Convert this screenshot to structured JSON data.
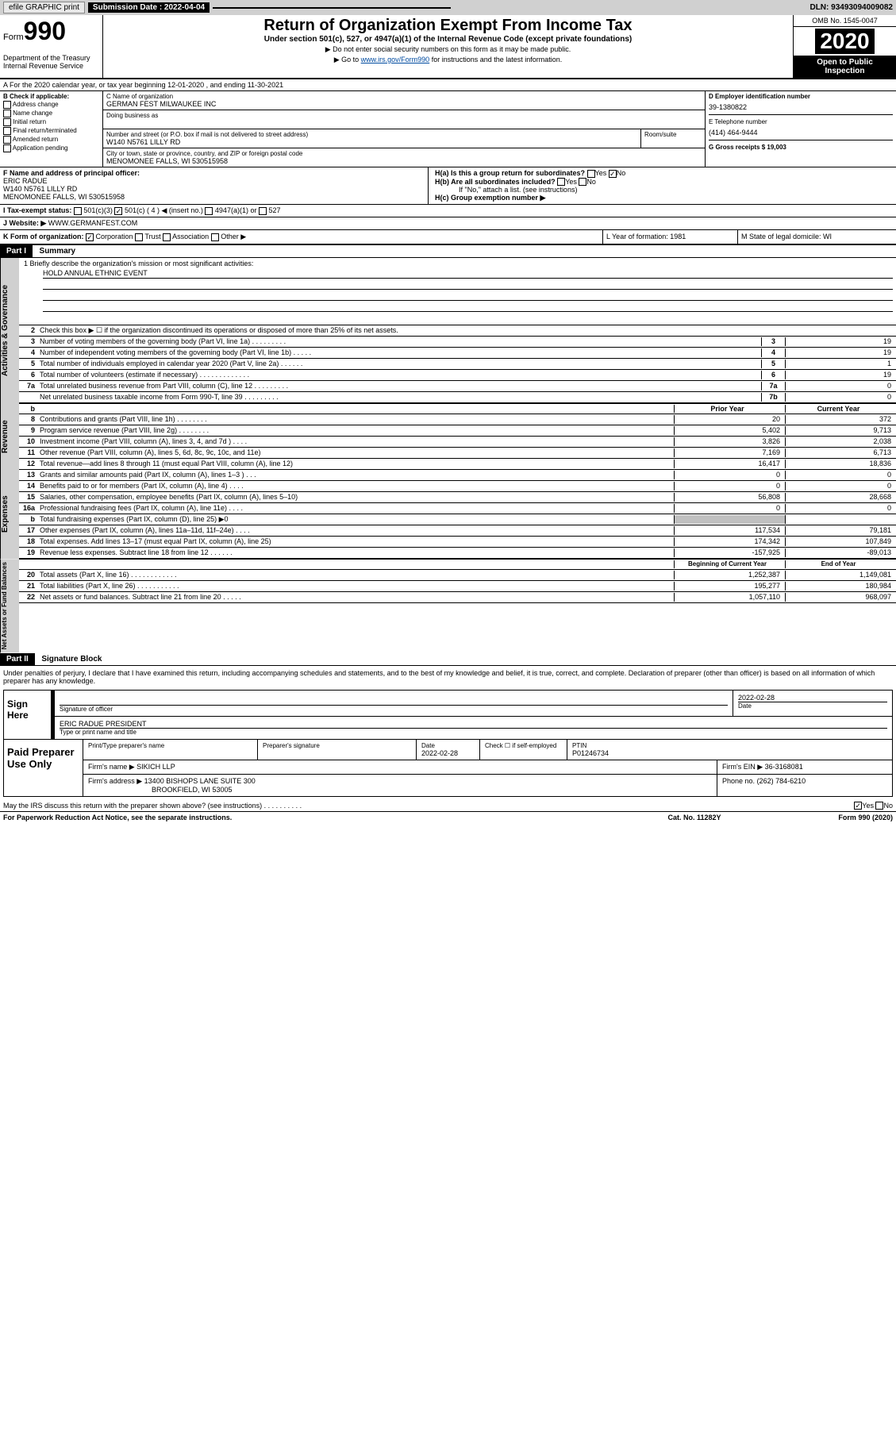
{
  "topbar": {
    "efile": "efile GRAPHIC print",
    "submission_label": "Submission Date : 2022-04-04",
    "dln": "DLN: 93493094009082"
  },
  "header": {
    "form_prefix": "Form",
    "form_num": "990",
    "dept": "Department of the Treasury\nInternal Revenue Service",
    "title": "Return of Organization Exempt From Income Tax",
    "subtitle": "Under section 501(c), 527, or 4947(a)(1) of the Internal Revenue Code (except private foundations)",
    "note1": "▶ Do not enter social security numbers on this form as it may be made public.",
    "note2_pre": "▶ Go to ",
    "note2_link": "www.irs.gov/Form990",
    "note2_post": " for instructions and the latest information.",
    "omb": "OMB No. 1545-0047",
    "year": "2020",
    "inspection": "Open to Public Inspection"
  },
  "line_a": "A For the 2020 calendar year, or tax year beginning 12-01-2020    , and ending 11-30-2021",
  "col_b": {
    "hdr": "B Check if applicable:",
    "items": [
      "Address change",
      "Name change",
      "Initial return",
      "Final return/terminated",
      "Amended return",
      "Application pending"
    ]
  },
  "col_c": {
    "name_lbl": "C Name of organization",
    "name": "GERMAN FEST MILWAUKEE INC",
    "dba_lbl": "Doing business as",
    "dba": "",
    "street_lbl": "Number and street (or P.O. box if mail is not delivered to street address)",
    "street": "W140 N5761 LILLY RD",
    "room_lbl": "Room/suite",
    "room": "",
    "city_lbl": "City or town, state or province, country, and ZIP or foreign postal code",
    "city": "MENOMONEE FALLS, WI  530515958"
  },
  "col_d": {
    "ein_lbl": "D Employer identification number",
    "ein": "39-1380822",
    "phone_lbl": "E Telephone number",
    "phone": "(414) 464-9444",
    "gross_lbl": "G Gross receipts $ 19,003"
  },
  "section_f": {
    "lbl": "F Name and address of principal officer:",
    "name": "ERIC RADUE",
    "addr1": "W140 N5761 LILLY RD",
    "addr2": "MENOMONEE FALLS, WI  530515958"
  },
  "section_h": {
    "ha": "H(a)  Is this a group return for subordinates?",
    "ha_yes": "Yes",
    "ha_no": "No",
    "hb": "H(b)  Are all subordinates included?",
    "hb_yes": "Yes",
    "hb_no": "No",
    "hb_note": "If \"No,\" attach a list. (see instructions)",
    "hc": "H(c)  Group exemption number ▶"
  },
  "tax_status": {
    "lbl": "I   Tax-exempt status:",
    "c3": "501(c)(3)",
    "c": "501(c) ( 4 ) ◀ (insert no.)",
    "a1": "4947(a)(1) or",
    "s527": "527"
  },
  "website": {
    "lbl": "J   Website: ▶",
    "val": "WWW.GERMANFEST.COM"
  },
  "k_row": {
    "k": "K Form of organization:",
    "corp": "Corporation",
    "trust": "Trust",
    "assoc": "Association",
    "other": "Other ▶",
    "l": "L Year of formation: 1981",
    "m": "M State of legal domicile: WI"
  },
  "part1": {
    "hdr": "Part I",
    "title": "Summary"
  },
  "mission": {
    "lbl": "1  Briefly describe the organization's mission or most significant activities:",
    "txt": "HOLD ANNUAL ETHNIC EVENT"
  },
  "governance": {
    "label": "Activities & Governance",
    "l2": "Check this box ▶ ☐  if the organization discontinued its operations or disposed of more than 25% of its net assets.",
    "lines": [
      {
        "n": "3",
        "t": "Number of voting members of the governing body (Part VI, line 1a)   .    .    .    .    .    .    .    .    .",
        "b": "3",
        "v": "19"
      },
      {
        "n": "4",
        "t": "Number of independent voting members of the governing body (Part VI, line 1b)  .    .    .    .    .",
        "b": "4",
        "v": "19"
      },
      {
        "n": "5",
        "t": "Total number of individuals employed in calendar year 2020 (Part V, line 2a)   .    .    .    .    .    .",
        "b": "5",
        "v": "1"
      },
      {
        "n": "6",
        "t": "Total number of volunteers (estimate if necessary)   .    .    .    .    .    .    .    .    .    .    .    .    .",
        "b": "6",
        "v": "19"
      },
      {
        "n": "7a",
        "t": "Total unrelated business revenue from Part VIII, column (C), line 12  .    .    .    .    .    .    .    .    .",
        "b": "7a",
        "v": "0"
      },
      {
        "n": "",
        "t": "Net unrelated business taxable income from Form 990-T, line 39   .    .    .    .    .    .    .    .    .",
        "b": "7b",
        "v": "0"
      }
    ]
  },
  "two_col_hdr": {
    "prior": "Prior Year",
    "curr": "Current Year"
  },
  "revenue": {
    "label": "Revenue",
    "lines": [
      {
        "n": "8",
        "t": "Contributions and grants (Part VIII, line 1h)   .    .    .    .    .    .    .    .",
        "p": "20",
        "c": "372"
      },
      {
        "n": "9",
        "t": "Program service revenue (Part VIII, line 2g)   .    .    .    .    .    .    .    .",
        "p": "5,402",
        "c": "9,713"
      },
      {
        "n": "10",
        "t": "Investment income (Part VIII, column (A), lines 3, 4, and 7d )  .    .    .    .",
        "p": "3,826",
        "c": "2,038"
      },
      {
        "n": "11",
        "t": "Other revenue (Part VIII, column (A), lines 5, 6d, 8c, 9c, 10c, and 11e)",
        "p": "7,169",
        "c": "6,713"
      },
      {
        "n": "12",
        "t": "Total revenue—add lines 8 through 11 (must equal Part VIII, column (A), line 12)",
        "p": "16,417",
        "c": "18,836"
      }
    ]
  },
  "expenses": {
    "label": "Expenses",
    "lines": [
      {
        "n": "13",
        "t": "Grants and similar amounts paid (Part IX, column (A), lines 1–3 )  .    .    .",
        "p": "0",
        "c": "0"
      },
      {
        "n": "14",
        "t": "Benefits paid to or for members (Part IX, column (A), line 4)   .    .    .    .",
        "p": "0",
        "c": "0"
      },
      {
        "n": "15",
        "t": "Salaries, other compensation, employee benefits (Part IX, column (A), lines 5–10)",
        "p": "56,808",
        "c": "28,668"
      },
      {
        "n": "16a",
        "t": "Professional fundraising fees (Part IX, column (A), line 11e)   .    .    .    .",
        "p": "0",
        "c": "0"
      },
      {
        "n": "b",
        "t": "Total fundraising expenses (Part IX, column (D), line 25) ▶0",
        "p": "",
        "c": "",
        "shade": true
      },
      {
        "n": "17",
        "t": "Other expenses (Part IX, column (A), lines 11a–11d, 11f–24e)   .    .    .    .",
        "p": "117,534",
        "c": "79,181"
      },
      {
        "n": "18",
        "t": "Total expenses. Add lines 13–17 (must equal Part IX, column (A), line 25)",
        "p": "174,342",
        "c": "107,849"
      },
      {
        "n": "19",
        "t": "Revenue less expenses. Subtract line 18 from line 12  .    .    .    .    .    .",
        "p": "-157,925",
        "c": "-89,013"
      }
    ]
  },
  "net_hdr": {
    "prior": "Beginning of Current Year",
    "curr": "End of Year"
  },
  "netassets": {
    "label": "Net Assets or Fund Balances",
    "lines": [
      {
        "n": "20",
        "t": "Total assets (Part X, line 16)  .    .    .    .    .    .    .    .    .    .    .    .",
        "p": "1,252,387",
        "c": "1,149,081"
      },
      {
        "n": "21",
        "t": "Total liabilities (Part X, line 26)   .    .    .    .    .    .    .    .    .    .    .",
        "p": "195,277",
        "c": "180,984"
      },
      {
        "n": "22",
        "t": "Net assets or fund balances. Subtract line 21 from line 20  .    .    .    .    .",
        "p": "1,057,110",
        "c": "968,097"
      }
    ]
  },
  "part2": {
    "hdr": "Part II",
    "title": "Signature Block"
  },
  "sig": {
    "penalty": "Under penalties of perjury, I declare that I have examined this return, including accompanying schedules and statements, and to the best of my knowledge and belief, it is true, correct, and complete. Declaration of preparer (other than officer) is based on all information of which preparer has any knowledge.",
    "sign_here": "Sign Here",
    "sig_officer": "Signature of officer",
    "date": "2022-02-28",
    "date_lbl": "Date",
    "name": "ERIC RADUE  PRESIDENT",
    "name_lbl": "Type or print name and title"
  },
  "paid": {
    "label": "Paid Preparer Use Only",
    "h1": "Print/Type preparer's name",
    "h2": "Preparer's signature",
    "h3": "Date",
    "h3v": "2022-02-28",
    "h4": "Check ☐ if self-employed",
    "h5": "PTIN",
    "h5v": "P01246734",
    "firm_lbl": "Firm's name    ▶",
    "firm": "SIKICH LLP",
    "ein_lbl": "Firm's EIN ▶",
    "ein": "36-3168081",
    "addr_lbl": "Firm's address ▶",
    "addr1": "13400 BISHOPS LANE SUITE 300",
    "addr2": "BROOKFIELD, WI  53005",
    "phone_lbl": "Phone no.",
    "phone": "(262) 784-6210"
  },
  "discuss": {
    "q": "May the IRS discuss this return with the preparer shown above? (see instructions)   .    .    .    .    .    .    .    .    .    .",
    "yes": "Yes",
    "no": "No"
  },
  "bottom": {
    "left": "For Paperwork Reduction Act Notice, see the separate instructions.",
    "mid": "Cat. No. 11282Y",
    "right": "Form 990 (2020)"
  }
}
